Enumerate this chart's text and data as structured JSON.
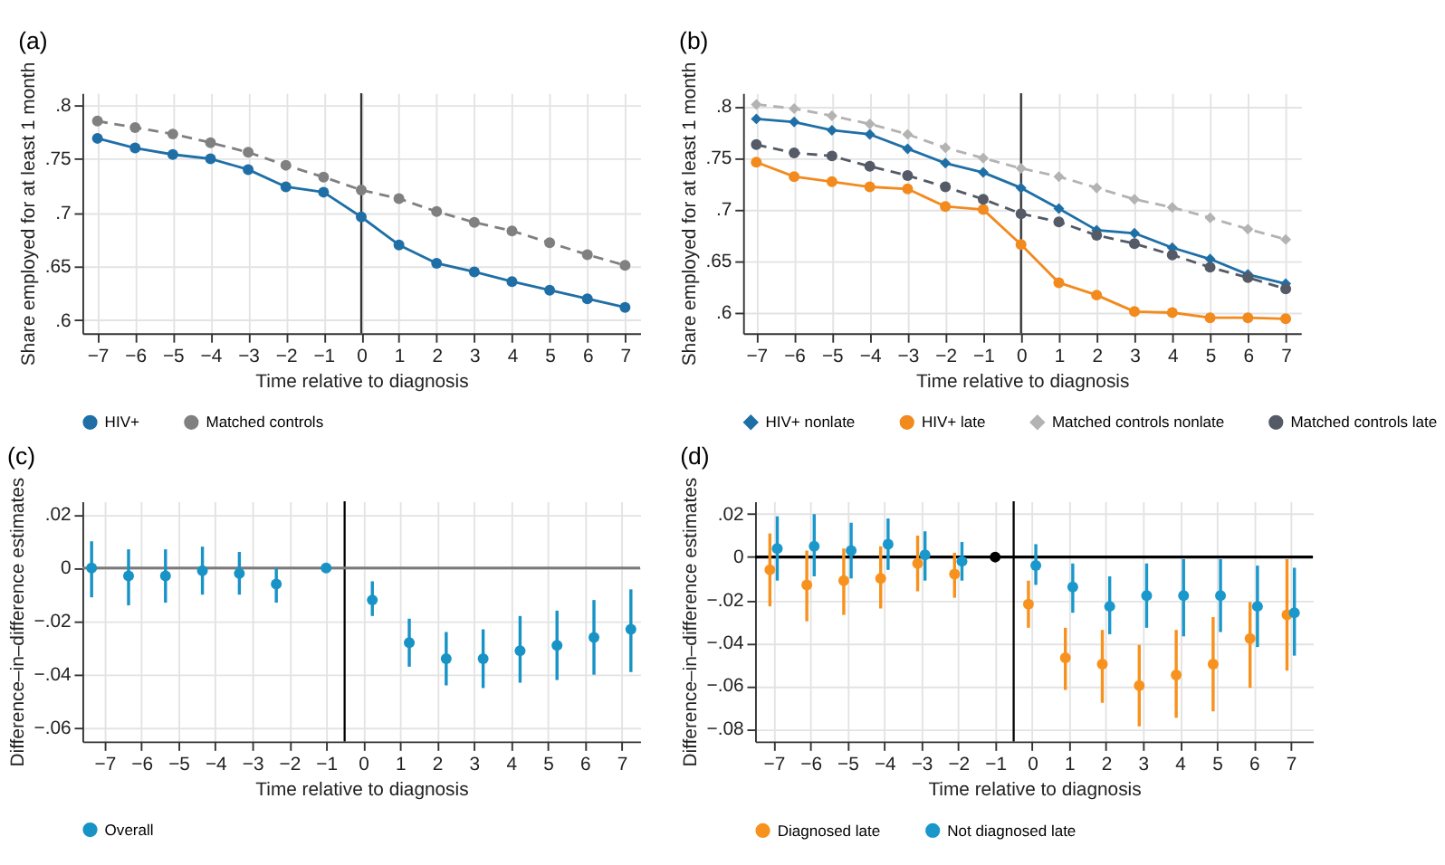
{
  "chart_data": [
    {
      "type": "line",
      "title": "(a)",
      "xlabel": "Time relative to diagnosis",
      "ylabel": "Share employed for at least 1 month",
      "x": [
        -7,
        -6,
        -5,
        -4,
        -3,
        -2,
        -1,
        0,
        1,
        2,
        3,
        4,
        5,
        6,
        7
      ],
      "xlim": [
        -7.4,
        7.4
      ],
      "xticks": [
        -7,
        -6,
        -5,
        -4,
        -3,
        -2,
        -1,
        0,
        1,
        2,
        3,
        4,
        5,
        6,
        7
      ],
      "ylim": [
        0.588,
        0.811
      ],
      "yticks": [
        {
          "value": 0.6,
          "label": ".6"
        },
        {
          "value": 0.65,
          "label": ".65"
        },
        {
          "value": 0.7,
          "label": ".7"
        },
        {
          "value": 0.75,
          "label": ".75"
        },
        {
          "value": 0.8,
          "label": ".8"
        }
      ],
      "grid": true,
      "legend": "bottom",
      "ref_lines": [
        {
          "axis": "x",
          "value": 0,
          "color": "#333333"
        }
      ],
      "series": [
        {
          "name": "HIV+",
          "color": "#1f6fa6",
          "marker": "circle",
          "line_style": "solid",
          "values": [
            0.769,
            0.76,
            0.754,
            0.75,
            0.74,
            0.724,
            0.719,
            0.696,
            0.67,
            0.653,
            0.645,
            0.636,
            0.628,
            0.62,
            0.612
          ]
        },
        {
          "name": "Matched controls",
          "color": "#808080",
          "marker": "circle",
          "line_style": "dashed",
          "values": [
            0.785,
            0.779,
            0.773,
            0.765,
            0.756,
            0.744,
            0.733,
            0.721,
            0.713,
            0.701,
            0.691,
            0.683,
            0.672,
            0.661,
            0.651
          ]
        }
      ]
    },
    {
      "type": "line",
      "title": "(b)",
      "xlabel": "Time relative to diagnosis",
      "ylabel": "Share employed for at least 1 month",
      "x": [
        -7,
        -6,
        -5,
        -4,
        -3,
        -2,
        -1,
        0,
        1,
        2,
        3,
        4,
        5,
        6,
        7
      ],
      "xlim": [
        -7.35,
        7.4
      ],
      "xticks": [
        -7,
        -6,
        -5,
        -4,
        -3,
        -2,
        -1,
        0,
        1,
        2,
        3,
        4,
        5,
        6,
        7
      ],
      "ylim": [
        0.58,
        0.813
      ],
      "yticks": [
        {
          "value": 0.6,
          "label": ".6"
        },
        {
          "value": 0.65,
          "label": ".65"
        },
        {
          "value": 0.7,
          "label": ".7"
        },
        {
          "value": 0.75,
          "label": ".75"
        },
        {
          "value": 0.8,
          "label": ".8"
        }
      ],
      "grid": true,
      "legend": "bottom",
      "ref_lines": [
        {
          "axis": "x",
          "value": 0,
          "color": "#333333"
        }
      ],
      "series": [
        {
          "name": "HIV+ nonlate",
          "color": "#1f6fa6",
          "marker": "diamond",
          "line_style": "solid",
          "values": [
            0.788,
            0.785,
            0.777,
            0.773,
            0.759,
            0.745,
            0.736,
            0.721,
            0.701,
            0.68,
            0.677,
            0.663,
            0.652,
            0.637,
            0.628
          ]
        },
        {
          "name": "HIV+ late",
          "color": "#f28a1e",
          "marker": "circle",
          "line_style": "solid",
          "values": [
            0.746,
            0.732,
            0.727,
            0.722,
            0.72,
            0.703,
            0.7,
            0.666,
            0.629,
            0.617,
            0.601,
            0.6,
            0.595,
            0.595,
            0.594
          ]
        },
        {
          "name": "Matched controls nonlate",
          "color": "#b3b3b3",
          "marker": "diamond",
          "line_style": "dashed",
          "values": [
            0.802,
            0.798,
            0.791,
            0.783,
            0.773,
            0.76,
            0.75,
            0.74,
            0.732,
            0.721,
            0.71,
            0.702,
            0.692,
            0.681,
            0.671
          ]
        },
        {
          "name": "Matched controls late",
          "color": "#545a66",
          "marker": "circle",
          "line_style": "dashed",
          "values": [
            0.763,
            0.755,
            0.752,
            0.742,
            0.733,
            0.722,
            0.71,
            0.696,
            0.688,
            0.675,
            0.667,
            0.656,
            0.644,
            0.634,
            0.623
          ]
        }
      ]
    },
    {
      "type": "scatter",
      "title": "(c)",
      "xlabel": "Time relative to diagnosis",
      "ylabel": "Difference–in–difference estimates",
      "xlim": [
        -7.6,
        7.5
      ],
      "xticks": [
        -7,
        -6,
        -5,
        -4,
        -3,
        -2,
        -1,
        0,
        1,
        2,
        3,
        4,
        5,
        6,
        7
      ],
      "ylim": [
        -0.065,
        0.025
      ],
      "yticks": [
        {
          "value": -0.06,
          "label": "−.06"
        },
        {
          "value": -0.04,
          "label": "−.04"
        },
        {
          "value": -0.02,
          "label": "−.02"
        },
        {
          "value": 0,
          "label": "0"
        },
        {
          "value": 0.02,
          "label": ".02"
        }
      ],
      "grid": true,
      "legend": "bottom",
      "ref_lines": [
        {
          "axis": "x",
          "value": -0.5,
          "color": "#000000"
        },
        {
          "axis": "y",
          "value": 0,
          "color": "#7a7a7a"
        }
      ],
      "series": [
        {
          "name": "Overall",
          "color": "#1893c6",
          "marker": "circle",
          "x": [
            -7.35,
            -6.35,
            -5.35,
            -4.35,
            -3.35,
            -2.35,
            -1,
            0.25,
            1.25,
            2.25,
            3.25,
            4.25,
            5.25,
            6.25,
            7.25
          ],
          "values": [
            0.0,
            -0.003,
            -0.003,
            -0.001,
            -0.002,
            -0.006,
            0.0,
            -0.012,
            -0.028,
            -0.034,
            -0.034,
            -0.031,
            -0.029,
            -0.026,
            -0.023
          ],
          "errors": [
            [
              -0.011,
              0.01
            ],
            [
              -0.014,
              0.007
            ],
            [
              -0.013,
              0.007
            ],
            [
              -0.01,
              0.008
            ],
            [
              -0.01,
              0.006
            ],
            [
              -0.013,
              0.0
            ],
            null,
            [
              -0.018,
              -0.005
            ],
            [
              -0.037,
              -0.019
            ],
            [
              -0.044,
              -0.024
            ],
            [
              -0.045,
              -0.023
            ],
            [
              -0.043,
              -0.018
            ],
            [
              -0.042,
              -0.016
            ],
            [
              -0.04,
              -0.012
            ],
            [
              -0.039,
              -0.008
            ]
          ]
        }
      ]
    },
    {
      "type": "scatter",
      "title": "(d)",
      "xlabel": "Time relative to diagnosis",
      "ylabel": "Difference–in–difference estimates",
      "xlim": [
        -7.5,
        7.6
      ],
      "xticks": [
        -7,
        -6,
        -5,
        -4,
        -3,
        -2,
        -1,
        0,
        1,
        2,
        3,
        4,
        5,
        6,
        7
      ],
      "ylim": [
        -0.086,
        0.026
      ],
      "yticks": [
        {
          "value": -0.08,
          "label": "−.08"
        },
        {
          "value": -0.06,
          "label": "−.06"
        },
        {
          "value": -0.04,
          "label": "−.04"
        },
        {
          "value": -0.02,
          "label": "−.02"
        },
        {
          "value": 0,
          "label": "0"
        },
        {
          "value": 0.02,
          "label": ".02"
        }
      ],
      "grid": true,
      "legend": "bottom",
      "ref_lines": [
        {
          "axis": "x",
          "value": -0.5,
          "color": "#000000"
        },
        {
          "axis": "y",
          "value": 0,
          "color": "#000000"
        }
      ],
      "series": [
        {
          "name": "Diagnosed late",
          "color": "#f7921e",
          "marker": "circle",
          "x": [
            -7.1,
            -6.1,
            -5.1,
            -4.1,
            -3.1,
            -2.1,
            -0.1,
            0.9,
            1.9,
            2.9,
            3.9,
            4.9,
            5.9,
            6.9
          ],
          "values": [
            -0.006,
            -0.013,
            -0.011,
            -0.01,
            -0.003,
            -0.008,
            -0.022,
            -0.047,
            -0.05,
            -0.06,
            -0.055,
            -0.05,
            -0.038,
            -0.027
          ],
          "errors": [
            [
              -0.023,
              0.011
            ],
            [
              -0.03,
              0.003
            ],
            [
              -0.027,
              0.004
            ],
            [
              -0.024,
              0.005
            ],
            [
              -0.016,
              0.01
            ],
            [
              -0.019,
              0.002
            ],
            [
              -0.033,
              -0.011
            ],
            [
              -0.062,
              -0.033
            ],
            [
              -0.068,
              -0.034
            ],
            [
              -0.079,
              -0.041
            ],
            [
              -0.075,
              -0.034
            ],
            [
              -0.072,
              -0.028
            ],
            [
              -0.061,
              -0.021
            ],
            [
              -0.053,
              -0.001
            ]
          ]
        },
        {
          "name": "Not diagnosed late",
          "color": "#1a98cb",
          "marker": "circle",
          "x": [
            -6.9,
            -5.9,
            -4.9,
            -3.9,
            -2.9,
            -1.9,
            0.1,
            1.1,
            2.1,
            3.1,
            4.1,
            5.1,
            6.1,
            7.1
          ],
          "values": [
            0.004,
            0.005,
            0.003,
            0.006,
            0.001,
            -0.002,
            -0.004,
            -0.014,
            -0.023,
            -0.018,
            -0.018,
            -0.018,
            -0.023,
            -0.026
          ],
          "errors": [
            [
              -0.011,
              0.019
            ],
            [
              -0.009,
              0.02
            ],
            [
              -0.01,
              0.016
            ],
            [
              -0.006,
              0.018
            ],
            [
              -0.011,
              0.012
            ],
            [
              -0.011,
              0.007
            ],
            [
              -0.013,
              0.006
            ],
            [
              -0.026,
              -0.003
            ],
            [
              -0.036,
              -0.009
            ],
            [
              -0.033,
              -0.003
            ],
            [
              -0.037,
              -0.001
            ],
            [
              -0.035,
              -0.001
            ],
            [
              -0.042,
              -0.004
            ],
            [
              -0.046,
              -0.005
            ]
          ]
        },
        {
          "color": "#000000",
          "marker": "circle",
          "x": [
            -1
          ],
          "values": [
            0.0
          ]
        }
      ]
    }
  ]
}
